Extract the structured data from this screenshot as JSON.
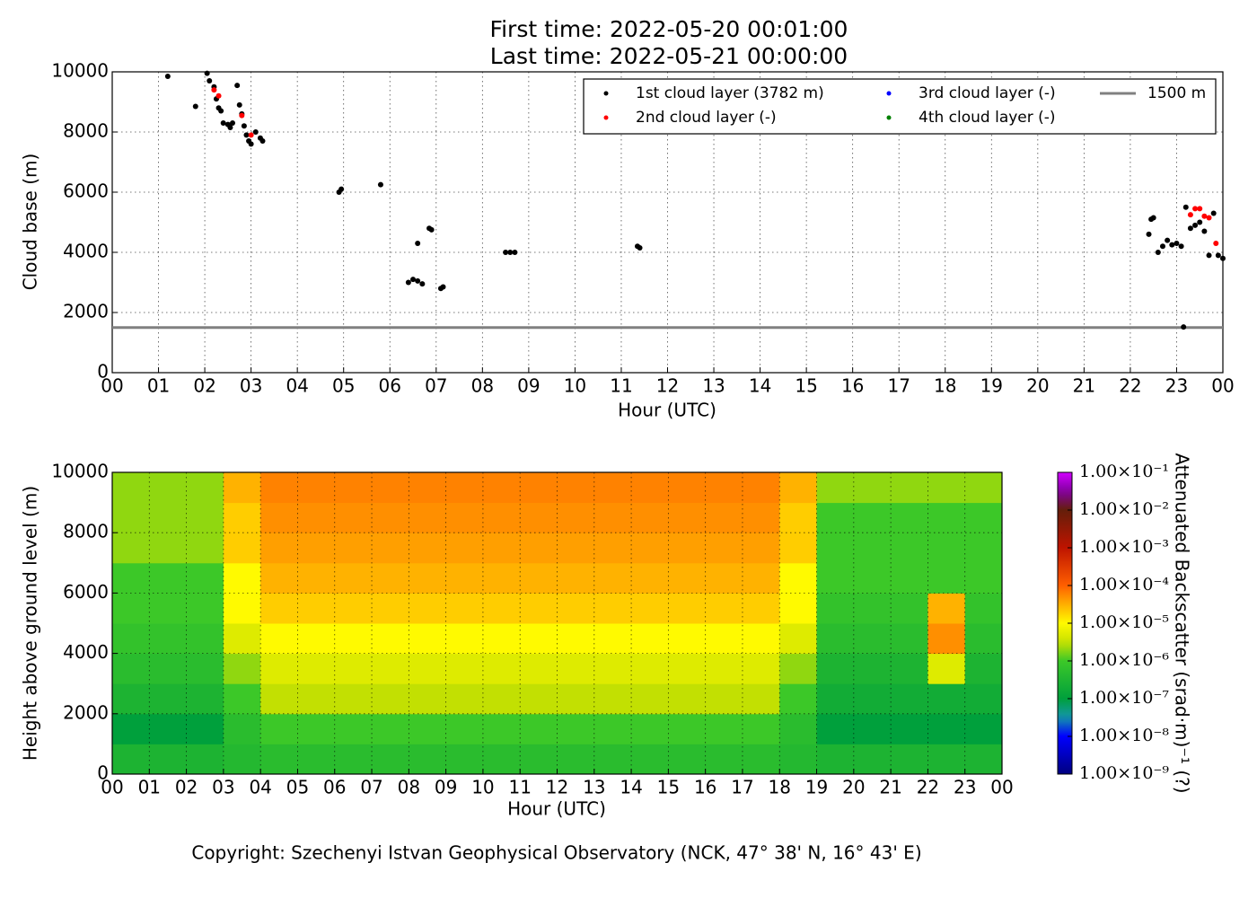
{
  "chart_data": [
    {
      "type": "scatter",
      "title": [
        "First time: 2022-05-20 00:01:00",
        "Last time: 2022-05-21 00:00:00"
      ],
      "xlabel": "Hour (UTC)",
      "ylabel": "Cloud base (m)",
      "xlim": [
        0,
        24
      ],
      "ylim": [
        0,
        10000
      ],
      "xticks": [
        {
          "value": 0,
          "label": "00"
        },
        {
          "value": 1,
          "label": "01"
        },
        {
          "value": 2,
          "label": "02"
        },
        {
          "value": 3,
          "label": "03"
        },
        {
          "value": 4,
          "label": "04"
        },
        {
          "value": 5,
          "label": "05"
        },
        {
          "value": 6,
          "label": "06"
        },
        {
          "value": 7,
          "label": "07"
        },
        {
          "value": 8,
          "label": "08"
        },
        {
          "value": 9,
          "label": "09"
        },
        {
          "value": 10,
          "label": "10"
        },
        {
          "value": 11,
          "label": "11"
        },
        {
          "value": 12,
          "label": "12"
        },
        {
          "value": 13,
          "label": "13"
        },
        {
          "value": 14,
          "label": "14"
        },
        {
          "value": 15,
          "label": "15"
        },
        {
          "value": 16,
          "label": "16"
        },
        {
          "value": 17,
          "label": "17"
        },
        {
          "value": 18,
          "label": "18"
        },
        {
          "value": 19,
          "label": "19"
        },
        {
          "value": 20,
          "label": "20"
        },
        {
          "value": 21,
          "label": "21"
        },
        {
          "value": 22,
          "label": "22"
        },
        {
          "value": 23,
          "label": "23"
        },
        {
          "value": 24,
          "label": "00"
        }
      ],
      "yticks": [
        0,
        2000,
        4000,
        6000,
        8000,
        10000
      ],
      "grid": true,
      "legend": "upper right",
      "series": [
        {
          "name": "1st cloud layer (3782 m)",
          "color": "#000000",
          "x": [
            1.2,
            1.8,
            2.05,
            2.1,
            2.2,
            2.25,
            2.3,
            2.35,
            2.4,
            2.5,
            2.55,
            2.6,
            2.7,
            2.75,
            2.8,
            2.85,
            2.9,
            2.95,
            3.0,
            3.1,
            3.2,
            3.25,
            4.9,
            4.95,
            5.8,
            6.4,
            6.5,
            6.6,
            6.6,
            6.7,
            6.85,
            6.9,
            7.1,
            7.15,
            8.5,
            8.6,
            8.7,
            11.35,
            11.4,
            22.4,
            22.45,
            22.5,
            22.6,
            22.7,
            22.8,
            22.9,
            23.0,
            23.1,
            23.2,
            23.3,
            23.4,
            23.5,
            23.6,
            23.7,
            23.8,
            23.9,
            24.0,
            23.15
          ],
          "y": [
            9850,
            8850,
            9950,
            9700,
            9500,
            9100,
            8800,
            8700,
            8300,
            8250,
            8150,
            8300,
            9550,
            8900,
            8600,
            8200,
            7900,
            7700,
            7600,
            8000,
            7800,
            7700,
            6000,
            6100,
            6250,
            3000,
            3100,
            3050,
            4300,
            2950,
            4800,
            4750,
            2800,
            2850,
            4000,
            4000,
            4000,
            4200,
            4150,
            4600,
            5100,
            5150,
            4000,
            4200,
            4400,
            4250,
            4300,
            4200,
            5500,
            4800,
            4900,
            5000,
            4700,
            3900,
            5300,
            3900,
            3800,
            1520
          ]
        },
        {
          "name": "2nd cloud layer (-)",
          "color": "#ff0000",
          "x": [
            2.2,
            2.3,
            2.8,
            3.0,
            23.3,
            23.4,
            23.5,
            23.6,
            23.7,
            23.85
          ],
          "y": [
            9400,
            9200,
            8550,
            7900,
            5250,
            5450,
            5450,
            5200,
            5150,
            4300
          ]
        },
        {
          "name": "3rd cloud layer (-)",
          "color": "#0000ff",
          "x": [],
          "y": []
        },
        {
          "name": "4th cloud layer (-)",
          "color": "#008000",
          "x": [],
          "y": []
        }
      ],
      "reference_line": {
        "name": "1500 m",
        "value": 1500,
        "color": "#808080"
      }
    },
    {
      "type": "heatmap",
      "xlabel": "Hour (UTC)",
      "ylabel": "Height above ground level (m)",
      "colorbar_label": "Attenuated Backscatter (srad·m)⁻¹ (?)",
      "xlim": [
        0,
        24
      ],
      "ylim": [
        0,
        10000
      ],
      "xticks": [
        {
          "value": 0,
          "label": "00"
        },
        {
          "value": 1,
          "label": "01"
        },
        {
          "value": 2,
          "label": "02"
        },
        {
          "value": 3,
          "label": "03"
        },
        {
          "value": 4,
          "label": "04"
        },
        {
          "value": 5,
          "label": "05"
        },
        {
          "value": 6,
          "label": "06"
        },
        {
          "value": 7,
          "label": "07"
        },
        {
          "value": 8,
          "label": "08"
        },
        {
          "value": 9,
          "label": "09"
        },
        {
          "value": 10,
          "label": "10"
        },
        {
          "value": 11,
          "label": "11"
        },
        {
          "value": 12,
          "label": "12"
        },
        {
          "value": 13,
          "label": "13"
        },
        {
          "value": 14,
          "label": "14"
        },
        {
          "value": 15,
          "label": "15"
        },
        {
          "value": 16,
          "label": "16"
        },
        {
          "value": 17,
          "label": "17"
        },
        {
          "value": 18,
          "label": "18"
        },
        {
          "value": 19,
          "label": "19"
        },
        {
          "value": 20,
          "label": "20"
        },
        {
          "value": 21,
          "label": "21"
        },
        {
          "value": 22,
          "label": "22"
        },
        {
          "value": 23,
          "label": "23"
        },
        {
          "value": 24,
          "label": "00"
        }
      ],
      "yticks": [
        0,
        2000,
        4000,
        6000,
        8000,
        10000
      ],
      "grid": true,
      "color_scale": "log",
      "clim": [
        1e-09,
        0.1
      ],
      "cticks": [
        {
          "value": 1e-09,
          "label": "1.00×10⁻⁹"
        },
        {
          "value": 1e-08,
          "label": "1.00×10⁻⁸"
        },
        {
          "value": 1e-07,
          "label": "1.00×10⁻⁷"
        },
        {
          "value": 1e-06,
          "label": "1.00×10⁻⁶"
        },
        {
          "value": 1e-05,
          "label": "1.00×10⁻⁵"
        },
        {
          "value": 0.0001,
          "label": "1.00×10⁻⁴"
        },
        {
          "value": 0.001,
          "label": "1.00×10⁻³"
        },
        {
          "value": 0.01,
          "label": "1.00×10⁻²"
        },
        {
          "value": 0.1,
          "label": "1.00×10⁻¹"
        }
      ],
      "x_bins": [
        0,
        1,
        2,
        3,
        4,
        5,
        6,
        7,
        8,
        9,
        10,
        11,
        12,
        13,
        14,
        15,
        16,
        17,
        18,
        19,
        20,
        21,
        22,
        23,
        24
      ],
      "y_bins": [
        0,
        1000,
        2000,
        3000,
        4000,
        5000,
        6000,
        7000,
        8000,
        9000,
        10000
      ],
      "z": [
        [
          3e-07,
          3e-07,
          3e-07,
          4e-07,
          5e-07,
          5e-07,
          5e-07,
          5e-07,
          5e-07,
          5e-07,
          5e-07,
          5e-07,
          5e-07,
          5e-07,
          5e-07,
          5e-07,
          5e-07,
          5e-07,
          4e-07,
          3e-07,
          3e-07,
          3e-07,
          3e-07,
          3e-07
        ],
        [
          1e-07,
          1e-07,
          1e-07,
          5e-07,
          1e-06,
          1e-06,
          1e-06,
          1e-06,
          1e-06,
          1e-06,
          1e-06,
          1e-06,
          1e-06,
          1e-06,
          1e-06,
          1e-06,
          1e-06,
          1e-06,
          5e-07,
          1e-07,
          1e-07,
          1e-07,
          1e-07,
          1e-07
        ],
        [
          3e-07,
          3e-07,
          3e-07,
          1e-06,
          3e-06,
          3e-06,
          3e-06,
          3e-06,
          3e-06,
          3e-06,
          3e-06,
          3e-06,
          3e-06,
          3e-06,
          3e-06,
          3e-06,
          3e-06,
          3e-06,
          1e-06,
          2e-07,
          2e-07,
          2e-07,
          2e-07,
          2e-07
        ],
        [
          5e-07,
          5e-07,
          5e-07,
          2e-06,
          5e-06,
          5e-06,
          5e-06,
          5e-06,
          5e-06,
          5e-06,
          5e-06,
          5e-06,
          5e-06,
          5e-06,
          5e-06,
          5e-06,
          5e-06,
          5e-06,
          2e-06,
          3e-07,
          3e-07,
          3e-07,
          5e-06,
          3e-07
        ],
        [
          7e-07,
          7e-07,
          7e-07,
          5e-06,
          1e-05,
          1e-05,
          1e-05,
          1e-05,
          1e-05,
          1e-05,
          1e-05,
          1e-05,
          1e-05,
          1e-05,
          1e-05,
          1e-05,
          1e-05,
          1e-05,
          5e-06,
          5e-07,
          5e-07,
          5e-07,
          5e-05,
          5e-07
        ],
        [
          1e-06,
          1e-06,
          1e-06,
          1e-05,
          2e-05,
          2e-05,
          2e-05,
          2e-05,
          2e-05,
          2e-05,
          2e-05,
          2e-05,
          2e-05,
          2e-05,
          2e-05,
          2e-05,
          2e-05,
          2e-05,
          1e-05,
          7e-07,
          7e-07,
          7e-07,
          3e-05,
          7e-07
        ],
        [
          1e-06,
          1e-06,
          1e-06,
          1e-05,
          3e-05,
          3e-05,
          3e-05,
          3e-05,
          3e-05,
          3e-05,
          3e-05,
          3e-05,
          3e-05,
          3e-05,
          3e-05,
          3e-05,
          3e-05,
          3e-05,
          1e-05,
          1e-06,
          1e-06,
          1e-06,
          1e-06,
          1e-06
        ],
        [
          2e-06,
          2e-06,
          2e-06,
          2e-05,
          4e-05,
          4e-05,
          4e-05,
          4e-05,
          4e-05,
          4e-05,
          4e-05,
          4e-05,
          4e-05,
          4e-05,
          4e-05,
          4e-05,
          4e-05,
          4e-05,
          2e-05,
          1e-06,
          1e-06,
          1e-06,
          1e-06,
          1e-06
        ],
        [
          2e-06,
          2e-06,
          2e-06,
          2e-05,
          5e-05,
          5e-05,
          5e-05,
          5e-05,
          5e-05,
          5e-05,
          5e-05,
          5e-05,
          5e-05,
          5e-05,
          5e-05,
          5e-05,
          5e-05,
          5e-05,
          2e-05,
          1e-06,
          1e-06,
          1e-06,
          1e-06,
          1e-06
        ],
        [
          2e-06,
          2e-06,
          2e-06,
          3e-05,
          6e-05,
          6e-05,
          6e-05,
          6e-05,
          6e-05,
          6e-05,
          6e-05,
          6e-05,
          6e-05,
          6e-05,
          6e-05,
          6e-05,
          6e-05,
          6e-05,
          3e-05,
          2e-06,
          2e-06,
          2e-06,
          2e-06,
          2e-06
        ]
      ]
    }
  ],
  "footer": "Copyright: Szechenyi Istvan Geophysical Observatory (NCK, 47° 38' N, 16° 43' E)"
}
